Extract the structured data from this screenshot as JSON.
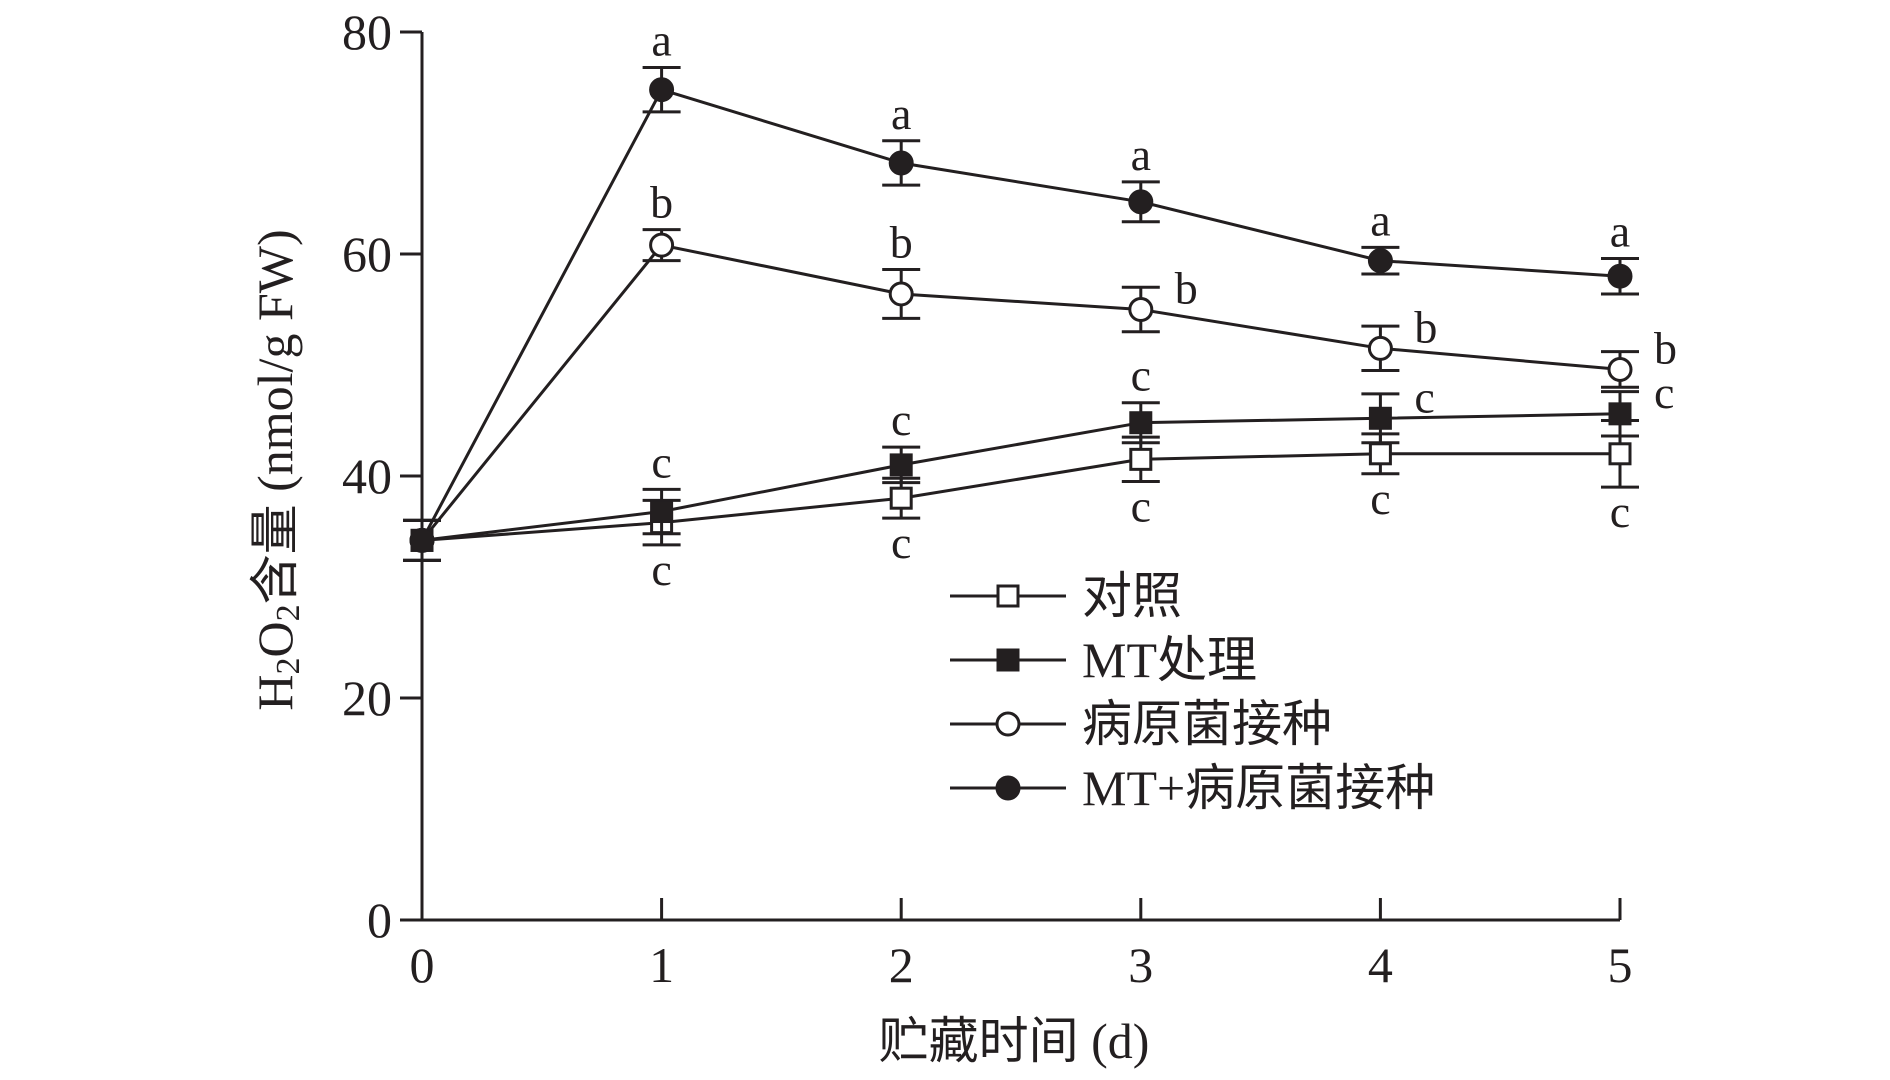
{
  "chart_data": {
    "type": "line",
    "title": "",
    "xlabel": "贮藏时间 (d)",
    "ylabel_main": "H",
    "ylabel_sub1": "2",
    "ylabel_mid": "O",
    "ylabel_sub2": "2",
    "ylabel_rest": "含量 (nmol/g FW)",
    "x": [
      0,
      1,
      2,
      3,
      4,
      5
    ],
    "xlim": [
      0,
      5
    ],
    "ylim": [
      0,
      80
    ],
    "xticks": [
      0,
      1,
      2,
      3,
      4,
      5
    ],
    "yticks": [
      0,
      20,
      40,
      60,
      80
    ],
    "grid": false,
    "legend_position": "bottom-right",
    "series": [
      {
        "name": "对照",
        "marker": "open-square",
        "values": [
          34.2,
          35.8,
          38.0,
          41.5,
          42.0,
          42.0
        ],
        "errors": [
          1.8,
          2.0,
          1.8,
          2.0,
          1.8,
          3.0
        ],
        "letters": [
          "",
          "c",
          "c",
          "c",
          "c",
          "c"
        ],
        "letter_side": [
          "",
          "below",
          "below",
          "below",
          "below",
          "below"
        ]
      },
      {
        "name": "MT处理",
        "marker": "filled-square",
        "values": [
          34.2,
          36.8,
          41.0,
          44.8,
          45.2,
          45.6
        ],
        "errors": [
          1.8,
          2.0,
          1.6,
          1.8,
          2.2,
          2.0
        ],
        "letters": [
          "",
          "c",
          "c",
          "c",
          "c",
          "c"
        ],
        "letter_side": [
          "",
          "above",
          "above",
          "above",
          "right",
          "right"
        ]
      },
      {
        "name": "病原菌接种",
        "marker": "open-circle",
        "values": [
          34.2,
          60.8,
          56.4,
          55.0,
          51.5,
          49.6
        ],
        "errors": [
          1.8,
          1.4,
          2.2,
          2.0,
          2.0,
          1.6
        ],
        "letters": [
          "",
          "b",
          "b",
          "b",
          "b",
          "b"
        ],
        "letter_side": [
          "",
          "above",
          "above",
          "right",
          "right",
          "right"
        ]
      },
      {
        "name": "MT+病原菌接种",
        "marker": "filled-circle",
        "values": [
          34.2,
          74.8,
          68.2,
          64.7,
          59.4,
          58.0
        ],
        "errors": [
          1.8,
          2.0,
          2.0,
          1.8,
          1.2,
          1.6
        ],
        "letters": [
          "",
          "a",
          "a",
          "a",
          "a",
          "a"
        ],
        "letter_side": [
          "",
          "above",
          "above",
          "above",
          "above",
          "above"
        ]
      }
    ]
  }
}
